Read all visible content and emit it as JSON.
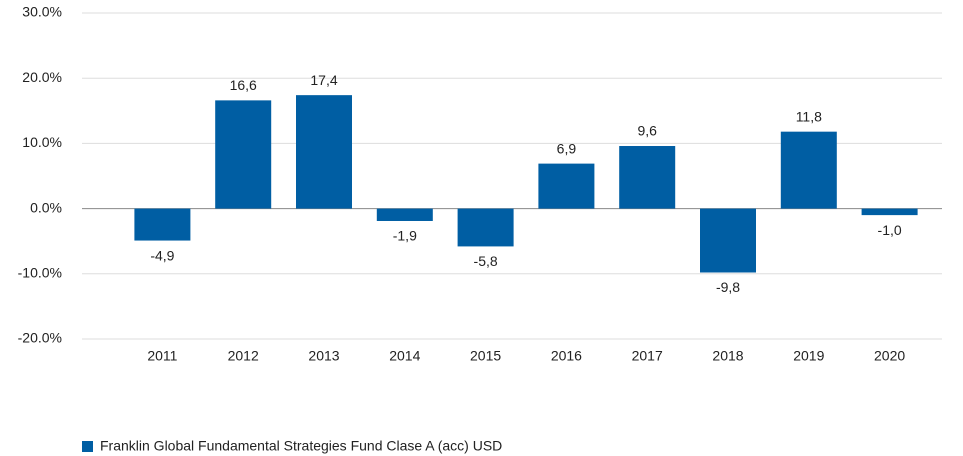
{
  "chart_data": {
    "type": "bar",
    "categories": [
      "2011",
      "2012",
      "2013",
      "2014",
      "2015",
      "2016",
      "2017",
      "2018",
      "2019",
      "2020"
    ],
    "values": [
      -4.9,
      16.6,
      17.4,
      -1.9,
      -5.8,
      6.9,
      9.6,
      -9.8,
      11.8,
      -1.0
    ],
    "value_labels": [
      "-4,9",
      "16,6",
      "17,4",
      "-1,9",
      "-5,8",
      "6,9",
      "9,6",
      "-9,8",
      "11,8",
      "-1,0"
    ],
    "series_name": "Franklin Global Fundamental Strategies Fund Clase A (acc) USD",
    "color": "#005ea3",
    "ylim": [
      -20,
      30
    ],
    "yticks": [
      {
        "value": -20,
        "label": "-20.0%"
      },
      {
        "value": -10,
        "label": "-10.0%"
      },
      {
        "value": 0,
        "label": "0.0%"
      },
      {
        "value": 10,
        "label": "10.0%"
      },
      {
        "value": 20,
        "label": "20.0%"
      },
      {
        "value": 30,
        "label": "30.0%"
      }
    ],
    "grid": true
  }
}
